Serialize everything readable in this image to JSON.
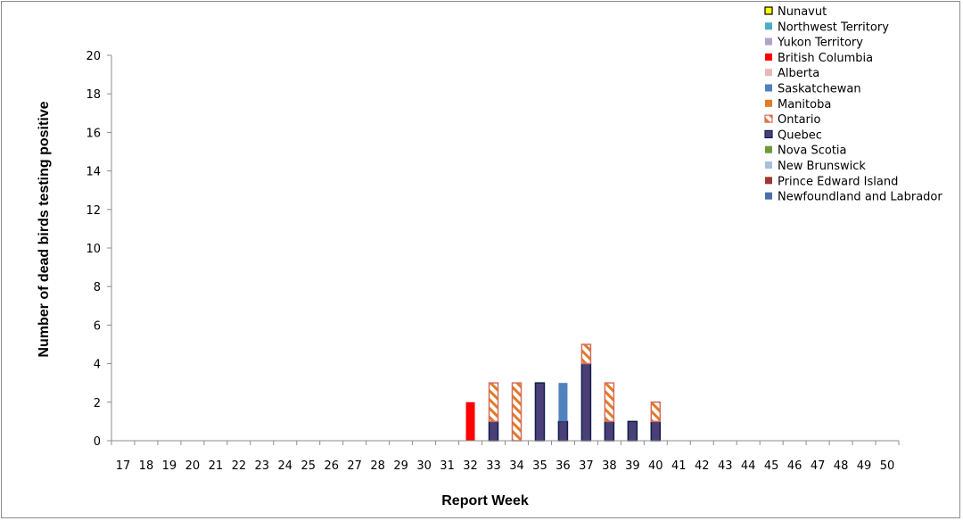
{
  "chart_data": {
    "type": "bar",
    "stacked": true,
    "categories": [
      "17",
      "18",
      "19",
      "20",
      "21",
      "22",
      "23",
      "24",
      "25",
      "26",
      "27",
      "28",
      "29",
      "30",
      "31",
      "32",
      "33",
      "34",
      "35",
      "36",
      "37",
      "38",
      "39",
      "40",
      "41",
      "42",
      "43",
      "44",
      "45",
      "46",
      "47",
      "48",
      "49",
      "50"
    ],
    "xlabel": "Report Week",
    "ylabel": "Number of dead birds testing positive",
    "ylim": [
      0,
      20
    ],
    "ytick_step": 2,
    "grid": false,
    "legend_position": "top-right",
    "series": [
      {
        "name": "Newfoundland and Labrador",
        "color": "#4a6fa5",
        "pattern": "solid",
        "values": {}
      },
      {
        "name": "Prince Edward Island",
        "color": "#9c3a32",
        "pattern": "solid",
        "values": {}
      },
      {
        "name": "New Brunswick",
        "color": "#a9bfdc",
        "pattern": "solid",
        "values": {}
      },
      {
        "name": "Nova Scotia",
        "color": "#6f9a3c",
        "pattern": "solid",
        "values": {}
      },
      {
        "name": "Quebec",
        "color": "#4b3f78",
        "border": "#0f1f4a",
        "pattern": "solid",
        "values": {
          "33": 1,
          "35": 3,
          "36": 1,
          "37": 4,
          "38": 1,
          "39": 1,
          "40": 1
        }
      },
      {
        "name": "Ontario",
        "color": "#e07b27",
        "border": "#d46b5e",
        "pattern": "hatch",
        "values": {
          "33": 2,
          "34": 3,
          "37": 1,
          "38": 2,
          "40": 1
        }
      },
      {
        "name": "Manitoba",
        "color": "#e07b27",
        "pattern": "solid",
        "values": {}
      },
      {
        "name": "Saskatchewan",
        "color": "#4f81bd",
        "pattern": "solid",
        "values": {
          "36": 2
        }
      },
      {
        "name": "Alberta",
        "color": "#e6b9b8",
        "pattern": "solid",
        "values": {}
      },
      {
        "name": "British Columbia",
        "color": "#ff0000",
        "pattern": "solid",
        "values": {
          "32": 2
        }
      },
      {
        "name": "Yukon Territory",
        "color": "#b3a2c7",
        "pattern": "solid",
        "values": {}
      },
      {
        "name": "Northwest Territory",
        "color": "#4bacc6",
        "pattern": "solid",
        "values": {}
      },
      {
        "name": "Nunavut",
        "color": "#ffff00",
        "border": "#000000",
        "pattern": "solid",
        "values": {}
      }
    ]
  }
}
